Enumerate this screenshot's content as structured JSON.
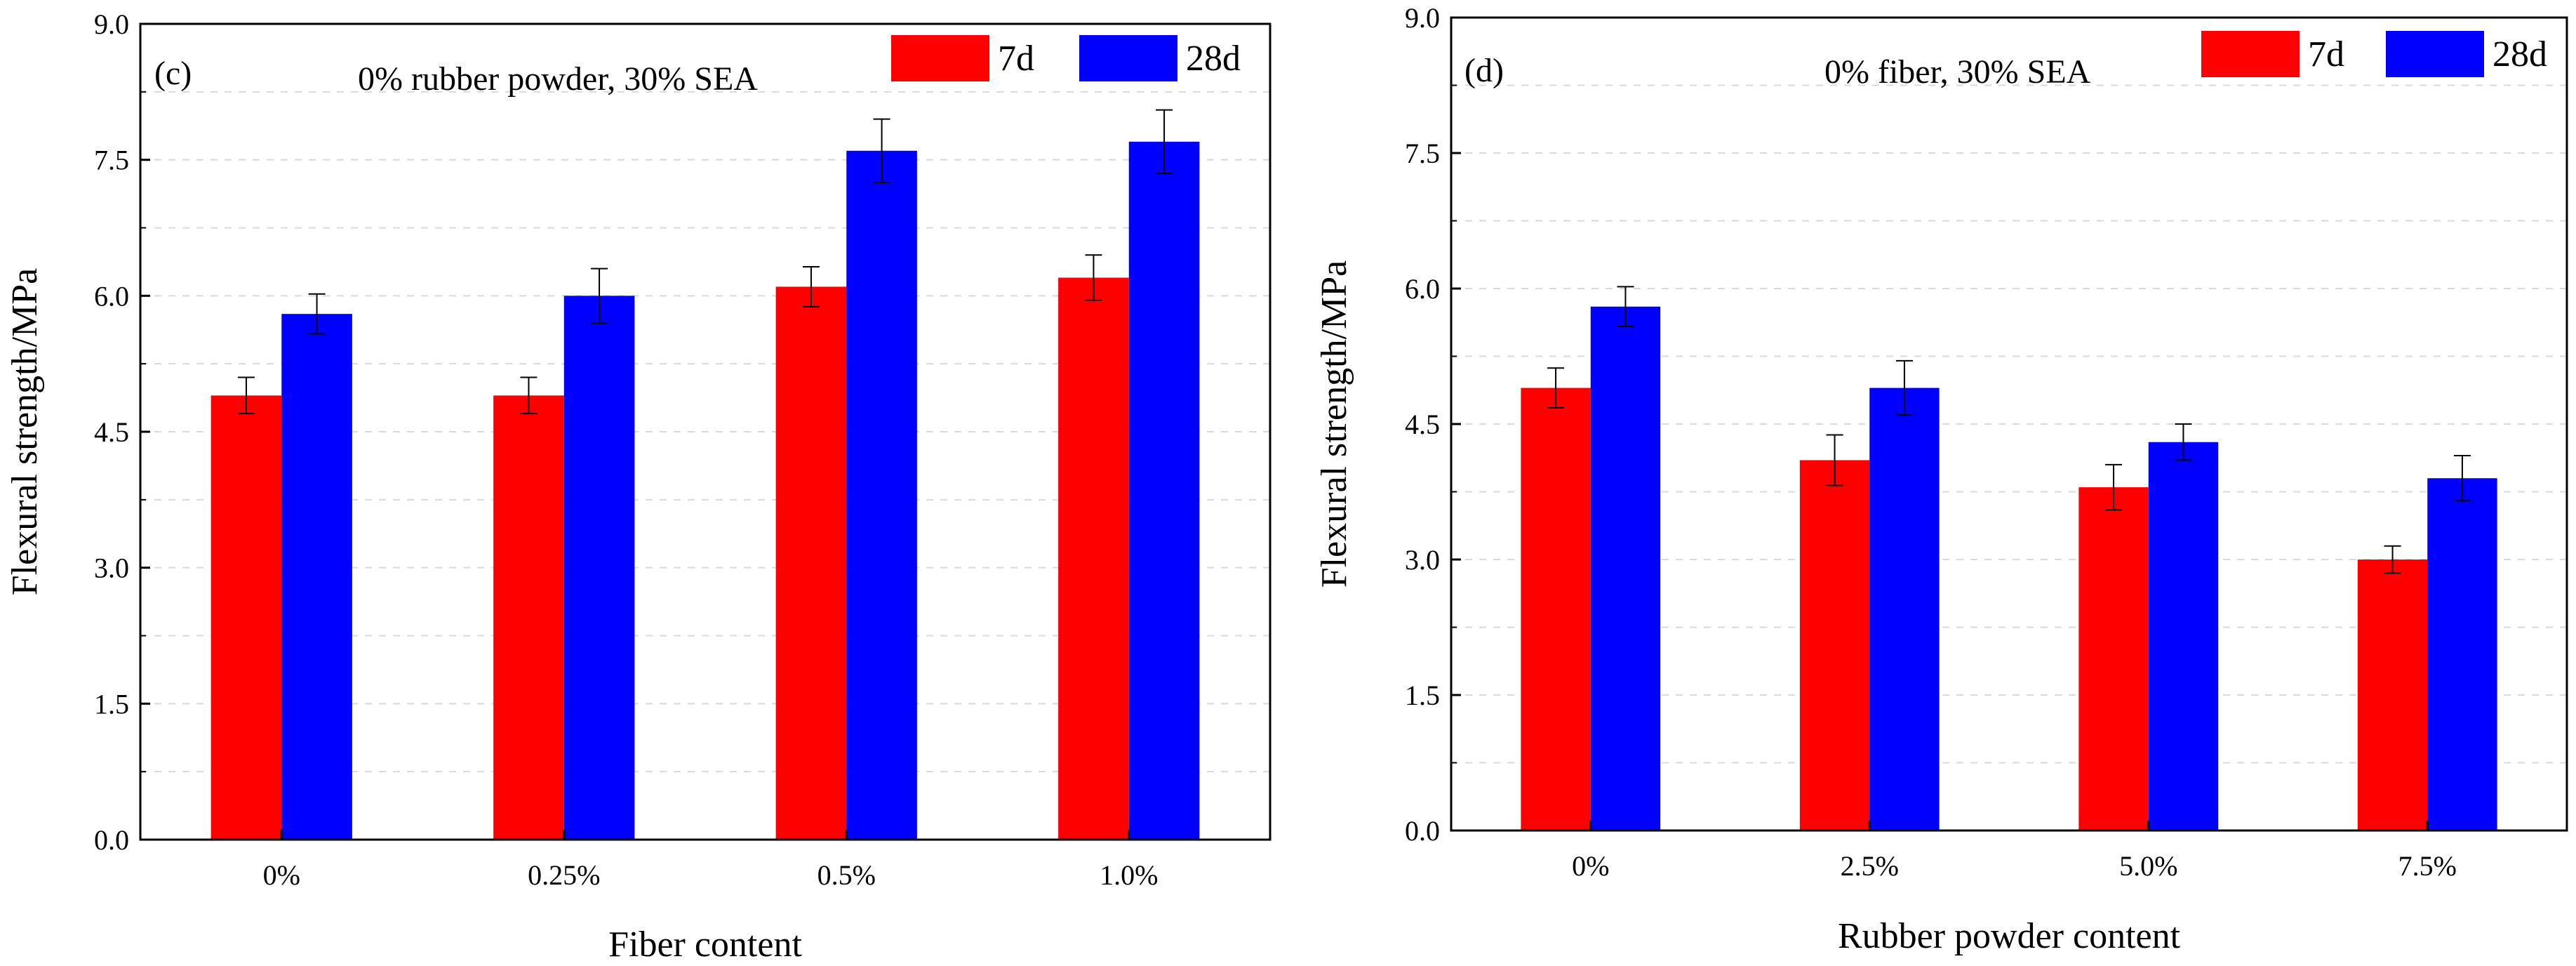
{
  "colors": {
    "7d": "#ff0000",
    "28d": "#0000ff",
    "axis": "#000000",
    "grid": "#d9d9d9"
  },
  "chart_data": [
    {
      "type": "bar",
      "panel_label": "(c)",
      "annotation": "0% rubber powder, 30% SEA",
      "xlabel": "Fiber content",
      "ylabel": "Flexural strength/MPa",
      "ylim": [
        0,
        9.0
      ],
      "yticks": [
        "0.0",
        "1.5",
        "3.0",
        "4.5",
        "6.0",
        "7.5",
        "9.0"
      ],
      "categories": [
        "0%",
        "0.25%",
        "0.5%",
        "1.0%"
      ],
      "series": [
        {
          "name": "7d",
          "values": [
            4.9,
            4.9,
            6.1,
            6.2
          ],
          "errors": [
            0.2,
            0.2,
            0.22,
            0.25
          ]
        },
        {
          "name": "28d",
          "values": [
            5.8,
            6.0,
            7.6,
            7.7
          ],
          "errors": [
            0.22,
            0.3,
            0.35,
            0.35
          ]
        }
      ],
      "grid": true,
      "legend": "top-right"
    },
    {
      "type": "bar",
      "panel_label": "(d)",
      "annotation": "0% fiber, 30% SEA",
      "xlabel": "Rubber powder content",
      "ylabel": "Flexural strength/MPa",
      "ylim": [
        0,
        9.0
      ],
      "yticks": [
        "0.0",
        "1.5",
        "3.0",
        "4.5",
        "6.0",
        "7.5",
        "9.0"
      ],
      "categories": [
        "0%",
        "2.5%",
        "5.0%",
        "7.5%"
      ],
      "series": [
        {
          "name": "7d",
          "values": [
            4.9,
            4.1,
            3.8,
            3.0
          ],
          "errors": [
            0.22,
            0.28,
            0.25,
            0.15
          ]
        },
        {
          "name": "28d",
          "values": [
            5.8,
            4.9,
            4.3,
            3.9
          ],
          "errors": [
            0.22,
            0.3,
            0.2,
            0.25
          ]
        }
      ],
      "grid": true,
      "legend": "top-right"
    }
  ]
}
